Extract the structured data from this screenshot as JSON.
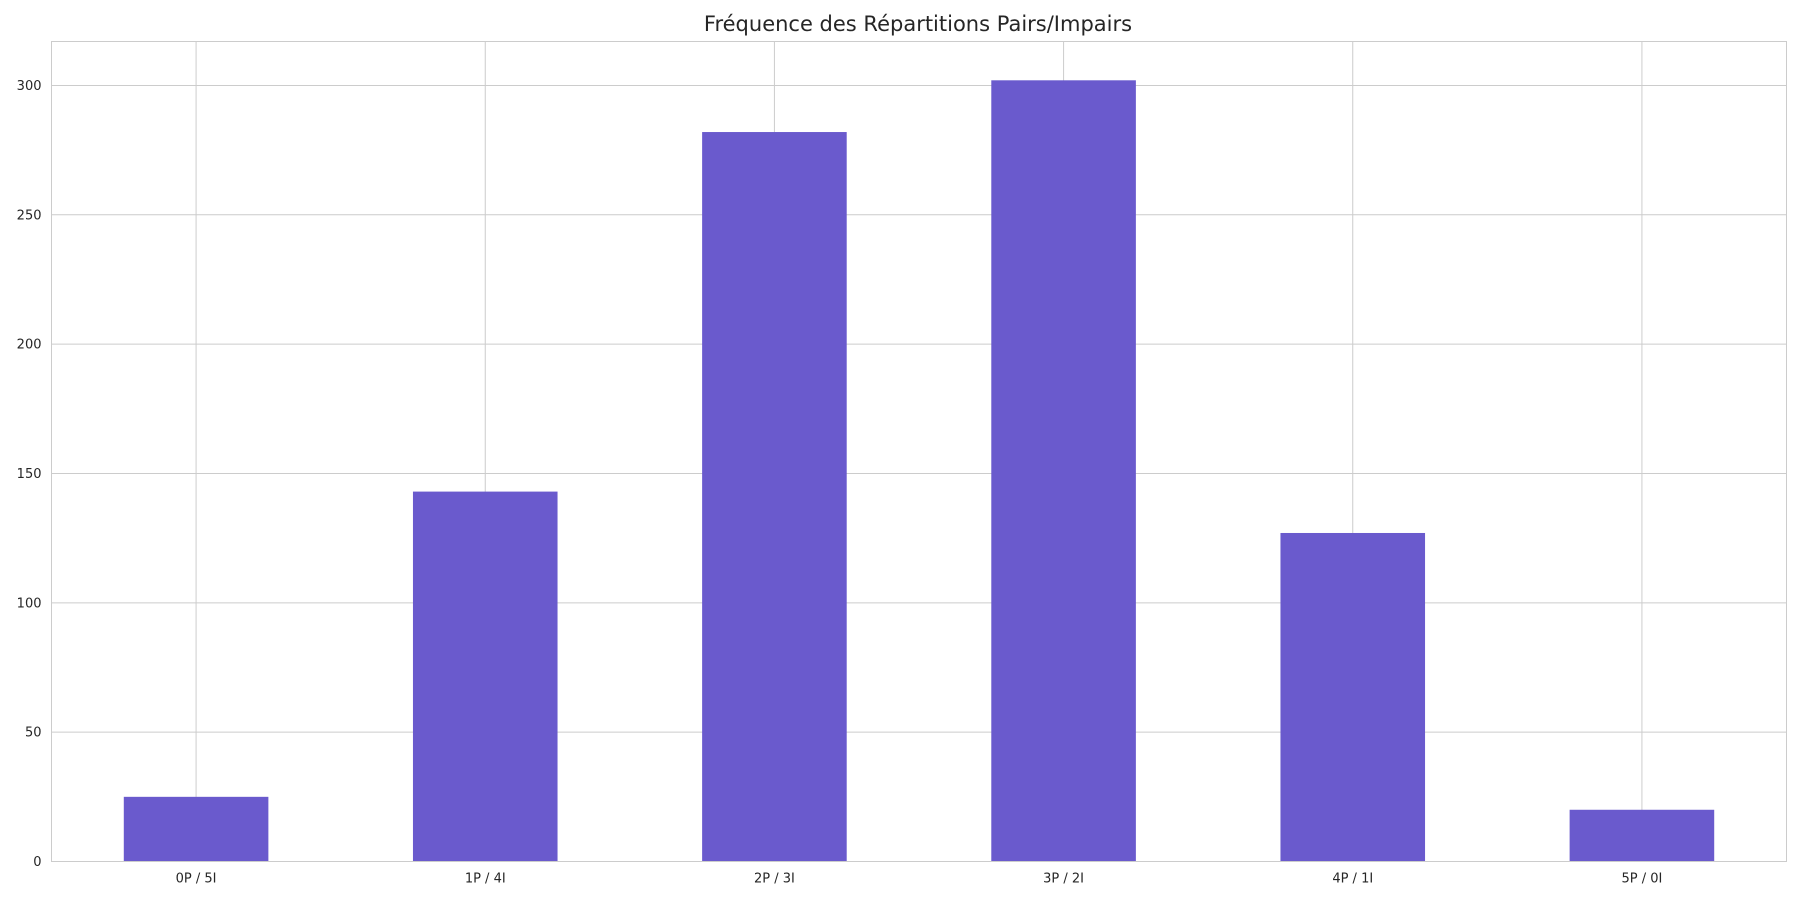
{
  "chart_data": {
    "type": "bar",
    "title": "Fréquence des Répartitions Pairs/Impairs",
    "xlabel": "",
    "ylabel": "",
    "categories": [
      "0P / 5I",
      "1P / 4I",
      "2P / 3I",
      "3P / 2I",
      "4P / 1I",
      "5P / 0I"
    ],
    "values": [
      25,
      143,
      282,
      302,
      127,
      20
    ],
    "ylim": [
      0,
      317
    ],
    "yticks": [
      0,
      50,
      100,
      150,
      200,
      250,
      300
    ],
    "grid": true,
    "bar_color": "#6a5acd",
    "grid_color": "#cccccc",
    "text_color": "#262626"
  }
}
